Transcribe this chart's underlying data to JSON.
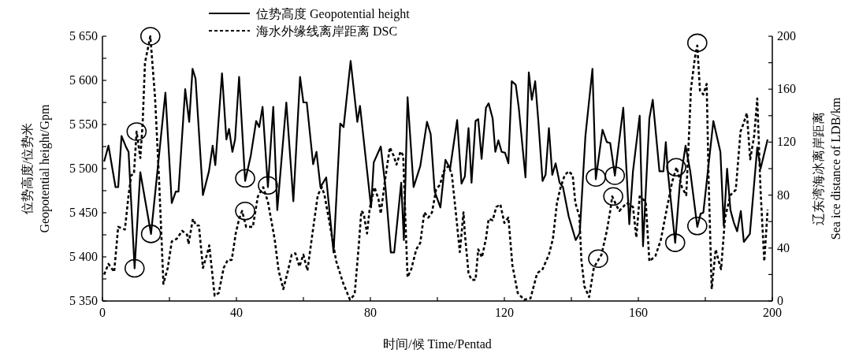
{
  "chart_data": {
    "type": "line",
    "xlabel": "时间/候 Time/Pentad",
    "ylabel": "位势高度/位势米\nGeopotential height/Gpm",
    "y2label": "辽东湾海冰离岸距离\nSea ice distance of LDB/km",
    "legend": "top",
    "grid": false,
    "xlim": [
      0,
      200
    ],
    "xticks": [
      0,
      {
        "value": 20,
        "label": null
      },
      40,
      {
        "value": 60,
        "label": null
      },
      80,
      {
        "value": 100,
        "label": null
      },
      120,
      {
        "value": 140,
        "label": null
      },
      160,
      {
        "value": 180,
        "label": null
      },
      200
    ],
    "ylim": [
      5350,
      5650
    ],
    "yticks": [
      {
        "value": 5350,
        "label": "5 350"
      },
      {
        "value": 5375,
        "label": null
      },
      {
        "value": 5400,
        "label": "5 400"
      },
      {
        "value": 5425,
        "label": null
      },
      {
        "value": 5450,
        "label": "5 450"
      },
      {
        "value": 5475,
        "label": null
      },
      {
        "value": 5500,
        "label": "5 500"
      },
      {
        "value": 5525,
        "label": null
      },
      {
        "value": 5550,
        "label": "5 550"
      },
      {
        "value": 5575,
        "label": null
      },
      {
        "value": 5600,
        "label": "5 600"
      },
      {
        "value": 5625,
        "label": null
      },
      {
        "value": 5650,
        "label": "5 650"
      }
    ],
    "y2lim": [
      0,
      200
    ],
    "y2ticks": [
      0,
      {
        "value": 20,
        "label": null
      },
      40,
      {
        "value": 60,
        "label": null
      },
      80,
      {
        "value": 100,
        "label": null
      },
      120,
      {
        "value": 140,
        "label": null
      },
      160,
      {
        "value": 180,
        "label": null
      },
      200
    ],
    "series": [
      {
        "name": "位势高度 Geopotential height",
        "color": "#000000",
        "line_style": "solid",
        "x": [
          0.5,
          1.8,
          3.9,
          4.7,
          5.7,
          7.1,
          7.8,
          9.6,
          11.3,
          14.5,
          18.8,
          20.7,
          21.9,
          22.7,
          24.7,
          25.9,
          26.9,
          27.8,
          30.0,
          31.8,
          32.9,
          33.7,
          35.7,
          37.0,
          37.8,
          38.8,
          39.6,
          40.8,
          42.6,
          44.3,
          45.9,
          46.8,
          47.8,
          49.4,
          51.0,
          52.2,
          54.9,
          57.0,
          59.0,
          60.0,
          61.0,
          62.9,
          63.9,
          65.1,
          66.8,
          69.0,
          71.0,
          72.0,
          74.1,
          76.1,
          76.9,
          80.2,
          81.0,
          83.1,
          84.5,
          86.1,
          87.1,
          89.2,
          90.0,
          91.1,
          92.9,
          94.9,
          96.9,
          98.0,
          99.2,
          100.9,
          102.4,
          103.8,
          105.9,
          107.2,
          108.2,
          109.3,
          110.2,
          111.4,
          112.2,
          113.2,
          114.5,
          115.3,
          116.5,
          117.3,
          118.2,
          119.2,
          120.2,
          121.2,
          122.2,
          123.4,
          124.3,
          126.3,
          127.3,
          128.2,
          129.2,
          130.2,
          131.4,
          132.3,
          133.3,
          134.3,
          135.3,
          136.5,
          137.5,
          139.2,
          141.3,
          142.5,
          144.2,
          146.3,
          147.3,
          149.3,
          150.6,
          151.6,
          153.0,
          155.5,
          157.3,
          158.4,
          160.4,
          161.4,
          163.3,
          164.3,
          166.3,
          167.5,
          168.2,
          168.8,
          171.0,
          172.4,
          174.1,
          175.5,
          177.6,
          178.6,
          179.4,
          182.4,
          184.5,
          185.5,
          186.5,
          187.5,
          188.5,
          189.5,
          190.6,
          191.5,
          193.3,
          195.5,
          196.5,
          198.6
        ],
        "values": [
          5508,
          5526,
          5479,
          5479,
          5537,
          5524,
          5519,
          5387,
          5496,
          5426,
          5586,
          5461,
          5474,
          5474,
          5590,
          5553,
          5613,
          5602,
          5470,
          5497,
          5526,
          5504,
          5608,
          5533,
          5545,
          5519,
          5533,
          5604,
          5486,
          5515,
          5554,
          5547,
          5570,
          5479,
          5570,
          5453,
          5575,
          5463,
          5604,
          5575,
          5575,
          5505,
          5519,
          5479,
          5490,
          5405,
          5551,
          5547,
          5622,
          5553,
          5571,
          5456,
          5507,
          5525,
          5479,
          5405,
          5405,
          5484,
          5419,
          5581,
          5479,
          5503,
          5553,
          5539,
          5474,
          5456,
          5510,
          5500,
          5555,
          5483,
          5491,
          5546,
          5484,
          5554,
          5556,
          5511,
          5569,
          5574,
          5557,
          5519,
          5532,
          5519,
          5518,
          5506,
          5599,
          5595,
          5569,
          5490,
          5609,
          5578,
          5599,
          5551,
          5486,
          5493,
          5546,
          5493,
          5506,
          5484,
          5479,
          5446,
          5419,
          5427,
          5537,
          5613,
          5488,
          5544,
          5530,
          5529,
          5492,
          5569,
          5437,
          5497,
          5560,
          5412,
          5557,
          5578,
          5497,
          5497,
          5530,
          5497,
          5416,
          5483,
          5526,
          5497,
          5434,
          5449,
          5450,
          5554,
          5519,
          5435,
          5500,
          5453,
          5439,
          5429,
          5452,
          5417,
          5426,
          5524,
          5500,
          5533
        ]
      },
      {
        "name": "海水外缘线离岸距离 DSC",
        "axis": "y2",
        "color": "#000000",
        "line_style": "dashed",
        "x": [
          0.5,
          1.8,
          3.5,
          4.7,
          6.7,
          7.8,
          8.6,
          9.4,
          10.2,
          11.3,
          12.0,
          12.7,
          14.3,
          14.9,
          15.7,
          16.9,
          18.2,
          19.5,
          20.7,
          22.2,
          23.8,
          25.3,
          25.7,
          27.0,
          28.0,
          28.8,
          30.0,
          31.2,
          31.9,
          33.5,
          34.7,
          36.2,
          37.4,
          38.6,
          39.8,
          40.8,
          41.7,
          42.9,
          44.9,
          46.4,
          48.0,
          49.4,
          51.4,
          52.6,
          54.0,
          55.4,
          56.5,
          57.6,
          58.8,
          60.0,
          61.2,
          62.7,
          64.3,
          65.5,
          66.3,
          67.8,
          69.8,
          71.8,
          73.9,
          75.3,
          76.5,
          77.3,
          78.0,
          79.0,
          79.8,
          81.2,
          82.4,
          83.1,
          84.3,
          85.8,
          86.9,
          87.8,
          89.0,
          89.8,
          90.6,
          91.1,
          92.2,
          93.7,
          94.9,
          96.1,
          97.3,
          98.4,
          99.6,
          100.8,
          101.9,
          103.3,
          104.3,
          105.5,
          106.7,
          107.8,
          108.2,
          109.3,
          110.2,
          111.4,
          112.2,
          113.3,
          114.5,
          115.3,
          116.5,
          117.6,
          118.8,
          120.0,
          121.2,
          122.4,
          124.0,
          125.9,
          127.8,
          129.8,
          131.4,
          133.3,
          134.5,
          135.7,
          136.7,
          138.0,
          139.2,
          140.4,
          141.2,
          142.4,
          143.0,
          143.9,
          145.3,
          146.7,
          147.8,
          149.0,
          150.6,
          151.6,
          152.2,
          153.3,
          154.3,
          156.5,
          158.4,
          159.4,
          160.4,
          162.2,
          163.3,
          165.1,
          166.7,
          168.6,
          170.1,
          171.4,
          173.0,
          174.3,
          175.0,
          175.7,
          176.9,
          177.6,
          178.4,
          179.4,
          180.4,
          181.0,
          181.9,
          183.1,
          183.9,
          184.7,
          185.9,
          187.5,
          189.1,
          190.5,
          191.4,
          192.4,
          193.4,
          194.6,
          195.5,
          196.5,
          197.6,
          198.6
        ],
        "values": [
          20,
          28,
          22,
          56,
          54,
          80,
          95,
          96,
          128,
          108,
          134,
          180,
          200,
          180,
          154,
          92,
          13,
          25,
          45,
          47,
          53,
          50,
          43,
          62,
          57,
          57,
          25,
          35,
          42,
          4,
          6,
          25,
          31,
          31,
          51,
          62,
          68,
          56,
          56,
          79,
          86,
          75,
          47,
          23,
          9,
          23,
          35,
          36,
          26,
          35,
          23,
          51,
          80,
          86,
          80,
          59,
          30,
          14,
          1,
          5,
          41,
          68,
          66,
          51,
          70,
          86,
          77,
          66,
          90,
          116,
          110,
          103,
          113,
          110,
          51,
          18,
          24,
          39,
          44,
          67,
          63,
          67,
          84,
          88,
          98,
          102,
          96,
          67,
          37,
          67,
          51,
          21,
          16,
          16,
          39,
          33,
          47,
          62,
          61,
          71,
          73,
          59,
          63,
          27,
          6,
          1,
          2,
          21,
          24,
          35,
          47,
          74,
          85,
          95,
          98,
          95,
          74,
          64,
          31,
          11,
          3,
          25,
          30,
          35,
          53,
          68,
          79,
          73,
          68,
          74,
          71,
          48,
          79,
          75,
          30,
          34,
          46,
          71,
          90,
          101,
          86,
          80,
          118,
          160,
          184,
          193,
          159,
          156,
          164,
          90,
          9,
          39,
          31,
          24,
          63,
          80,
          84,
          128,
          134,
          142,
          107,
          125,
          153,
          83,
          30,
          69
        ]
      },
      {
        "type": "scatter",
        "color": "#000000",
        "marker": "circle",
        "x": [
          9.6,
          14.5,
          42.6,
          49.4,
          147.3,
          153.0,
          171.0,
          177.6
        ],
        "values": [
          5387,
          5426,
          5489,
          5481,
          5490,
          5492,
          5416,
          5435
        ]
      },
      {
        "type": "scatter",
        "axis": "y2",
        "color": "#000000",
        "marker": "circle",
        "x": [
          10.2,
          14.3,
          42.6,
          148.0,
          152.5,
          171.3,
          177.6
        ],
        "values": [
          128,
          200,
          68,
          32,
          79,
          101,
          195
        ]
      }
    ]
  }
}
